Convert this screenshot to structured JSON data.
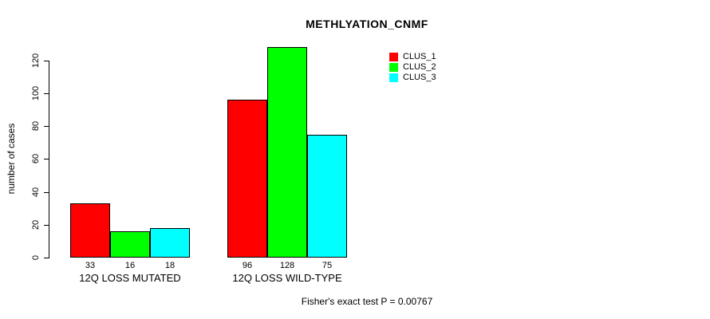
{
  "title": "METHLYATION_CNMF",
  "y_axis": {
    "label": "number of cases",
    "ticks": [
      0,
      20,
      40,
      60,
      80,
      100,
      120
    ]
  },
  "legend": {
    "items": [
      {
        "label": "CLUS_1",
        "color": "#FF0000"
      },
      {
        "label": "CLUS_2",
        "color": "#00FF00"
      },
      {
        "label": "CLUS_3",
        "color": "#00FFFF"
      }
    ]
  },
  "footer": "Fisher's exact test P = 0.00767",
  "chart_data": {
    "type": "bar",
    "title": "METHLYATION_CNMF",
    "categories": [
      "12Q LOSS MUTATED",
      "12Q LOSS WILD-TYPE"
    ],
    "series": [
      {
        "name": "CLUS_1",
        "color": "#FF0000",
        "values": [
          33,
          96
        ]
      },
      {
        "name": "CLUS_2",
        "color": "#00FF00",
        "values": [
          16,
          128
        ]
      },
      {
        "name": "CLUS_3",
        "color": "#00FFFF",
        "values": [
          18,
          75
        ]
      }
    ],
    "xlabel": "",
    "ylabel": "number of cases",
    "ylim": [
      0,
      128
    ],
    "yticks": [
      0,
      20,
      40,
      60,
      80,
      100,
      120
    ],
    "grid": false,
    "legend_position": "top-right",
    "bar_border_color": "#000000",
    "bar_value_labels": true,
    "annotation": "Fisher's exact test P = 0.00767"
  }
}
